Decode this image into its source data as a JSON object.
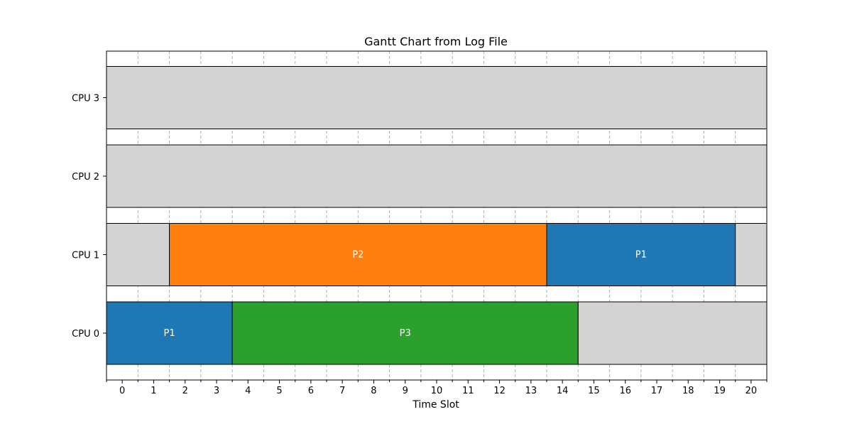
{
  "chart_data": {
    "type": "gantt",
    "title": "Gantt Chart from Log File",
    "xlabel": "Time Slot",
    "ylabel": "",
    "xlim": [
      -0.5,
      20.5
    ],
    "x_ticks": [
      0,
      1,
      2,
      3,
      4,
      5,
      6,
      7,
      8,
      9,
      10,
      11,
      12,
      13,
      14,
      15,
      16,
      17,
      18,
      19,
      20
    ],
    "grid": "x-minor-dashed",
    "rows": [
      "CPU 0",
      "CPU 1",
      "CPU 2",
      "CPU 3"
    ],
    "idle_color": "#d3d3d3",
    "tasks": [
      {
        "row": "CPU 0",
        "label": "P1",
        "start": -0.5,
        "end": 3.5,
        "color": "#1f77b4"
      },
      {
        "row": "CPU 0",
        "label": "P3",
        "start": 3.5,
        "end": 14.5,
        "color": "#2ca02c"
      },
      {
        "row": "CPU 0",
        "label": "",
        "start": 14.5,
        "end": 20.5,
        "color": "#d3d3d3"
      },
      {
        "row": "CPU 1",
        "label": "",
        "start": -0.5,
        "end": 1.5,
        "color": "#d3d3d3"
      },
      {
        "row": "CPU 1",
        "label": "P2",
        "start": 1.5,
        "end": 13.5,
        "color": "#ff7f0e"
      },
      {
        "row": "CPU 1",
        "label": "P1",
        "start": 13.5,
        "end": 19.5,
        "color": "#1f77b4"
      },
      {
        "row": "CPU 1",
        "label": "",
        "start": 19.5,
        "end": 20.5,
        "color": "#d3d3d3"
      },
      {
        "row": "CPU 2",
        "label": "",
        "start": -0.5,
        "end": 20.5,
        "color": "#d3d3d3"
      },
      {
        "row": "CPU 3",
        "label": "",
        "start": -0.5,
        "end": 20.5,
        "color": "#d3d3d3"
      }
    ]
  }
}
